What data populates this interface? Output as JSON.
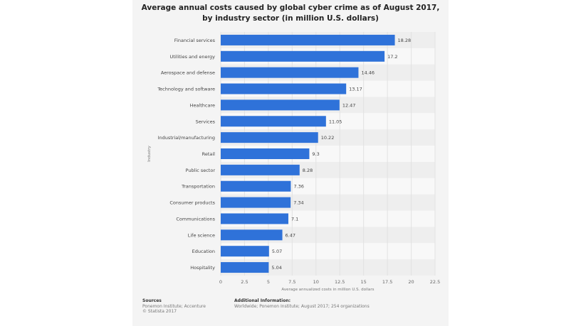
{
  "title_line1": "Average annual costs caused by global cyber crime as of August 2017,",
  "title_line2": "by industry sector (in million U.S. dollars)",
  "chart_data": {
    "type": "bar",
    "orientation": "horizontal",
    "categories": [
      "Financial services",
      "Utilities and energy",
      "Aerospace and defense",
      "Technology and software",
      "Healthcare",
      "Services",
      "Industrial/manufacturing",
      "Retail",
      "Public sector",
      "Transportation",
      "Consumer products",
      "Communications",
      "Life science",
      "Education",
      "Hospitality"
    ],
    "values": [
      18.28,
      17.2,
      14.46,
      13.17,
      12.47,
      11.05,
      10.22,
      9.3,
      8.28,
      7.36,
      7.34,
      7.1,
      6.47,
      5.07,
      5.04
    ],
    "value_labels": [
      "18.28",
      "17.2",
      "14.46",
      "13.17",
      "12.47",
      "11.05",
      "10.22",
      "9.3",
      "8.28",
      "7.36",
      "7.34",
      "7.1",
      "6.47",
      "5.07",
      "5.04"
    ],
    "xlabel": "Average annualized costs in million U.S. dollars",
    "ylabel": "Industry",
    "xlim": [
      0,
      22.5
    ],
    "xticks": [
      "0",
      "2.5",
      "5",
      "7.5",
      "10",
      "12.5",
      "15",
      "17.5",
      "20",
      "22.5"
    ],
    "grid": true,
    "bar_color": "#2f72d9"
  },
  "footer": {
    "sources_heading": "Sources",
    "sources_line1": "Ponemon Institute; Accenture",
    "sources_line2": "© Statista 2017",
    "info_heading": "Additional Information:",
    "info_line1": "Worldwide; Ponemon Institute; August 2017; 254 organizations"
  }
}
